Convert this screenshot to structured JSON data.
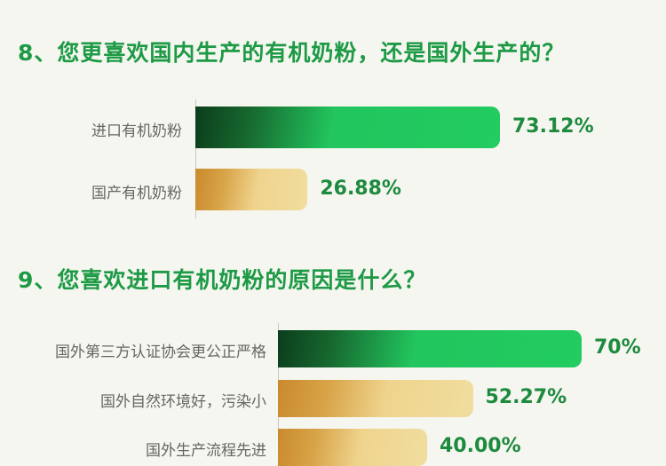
{
  "chart_data": [
    {
      "type": "bar",
      "orientation": "horizontal",
      "title": "8、您更喜欢国内生产的有机奶粉，还是国外生产的？",
      "categories": [
        "进口有机奶粉",
        "国产有机奶粉"
      ],
      "values": [
        73.12,
        26.88
      ],
      "value_labels": [
        "73.12%",
        "26.88%"
      ],
      "colors": [
        "#22c55e",
        "#e8c57a"
      ]
    },
    {
      "type": "bar",
      "orientation": "horizontal",
      "title": "9、您喜欢进口有机奶粉的原因是什么？",
      "categories": [
        "国外第三方认证协会更公正严格",
        "国外自然环境好，污染小",
        "国外生产流程先进"
      ],
      "values": [
        70,
        52.27,
        40.0
      ],
      "value_labels": [
        "70%",
        "52.27%",
        "40.00%"
      ],
      "colors": [
        "#22c55e",
        "#e8c57a",
        "#e8c57a"
      ]
    }
  ]
}
